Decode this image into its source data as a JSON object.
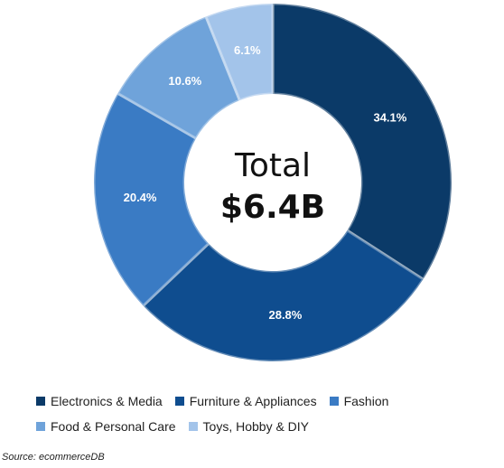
{
  "chart_data": {
    "type": "pie",
    "donut": true,
    "center": {
      "label": "Total",
      "value": "$6.4B"
    },
    "categories": [
      "Electronics & Media",
      "Furniture & Appliances",
      "Fashion",
      "Food & Personal Care",
      "Toys, Hobby & DIY"
    ],
    "values": [
      34.1,
      28.8,
      20.4,
      10.6,
      6.1
    ],
    "value_labels": [
      "34.1%",
      "28.8%",
      "20.4%",
      "10.6%",
      "6.1%"
    ],
    "colors": [
      "#0b3a68",
      "#0f4d8f",
      "#3a7bc4",
      "#6fa3da",
      "#a3c4ea"
    ],
    "legend_position": "bottom"
  },
  "source": "Source: ecommerceDB"
}
